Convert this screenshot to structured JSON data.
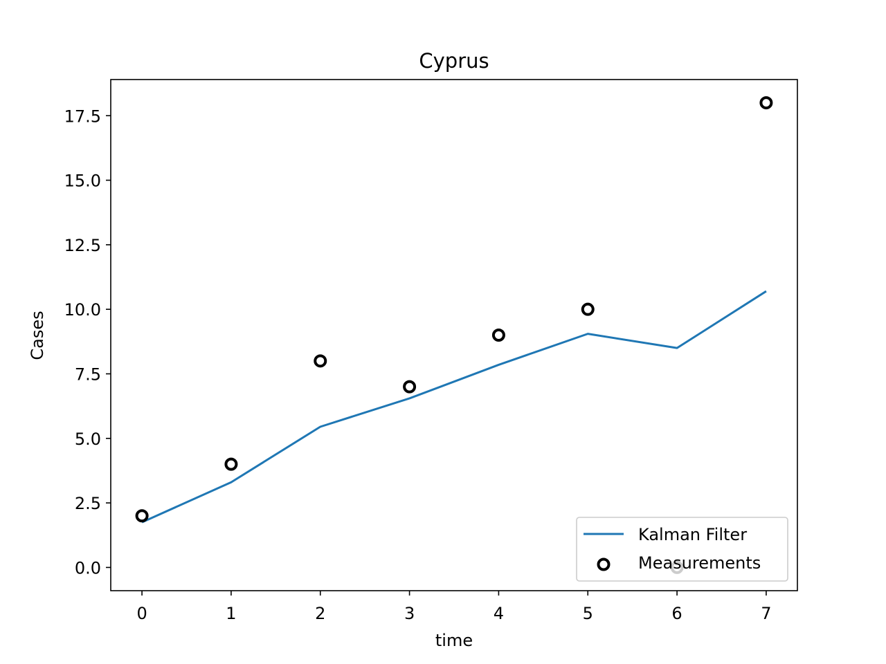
{
  "chart_data": {
    "type": "line",
    "title": "Cyprus",
    "xlabel": "time",
    "ylabel": "Cases",
    "xlim": [
      -0.35,
      7.35
    ],
    "ylim": [
      -0.9,
      18.9
    ],
    "xticks": [
      0,
      1,
      2,
      3,
      4,
      5,
      6,
      7
    ],
    "xtick_labels": [
      "0",
      "1",
      "2",
      "3",
      "4",
      "5",
      "6",
      "7"
    ],
    "yticks": [
      0,
      2.5,
      5,
      7.5,
      10,
      12.5,
      15,
      17.5
    ],
    "ytick_labels": [
      "0.0",
      "2.5",
      "5.0",
      "7.5",
      "10.0",
      "12.5",
      "15.0",
      "17.5"
    ],
    "grid": false,
    "legend_position": "lower right",
    "series": [
      {
        "name": "Kalman Filter",
        "kind": "line",
        "color": "#1f77b4",
        "x": [
          0,
          1,
          2,
          3,
          4,
          5,
          6,
          7
        ],
        "y": [
          1.75,
          3.3,
          5.45,
          6.55,
          7.85,
          9.05,
          8.5,
          10.7
        ]
      },
      {
        "name": "Measurements",
        "kind": "scatter",
        "color": "#000000",
        "marker": "hollow-circle",
        "x": [
          0,
          1,
          2,
          3,
          4,
          5,
          6,
          7
        ],
        "y": [
          2,
          4,
          8,
          7,
          9,
          10,
          0,
          18
        ]
      }
    ]
  }
}
